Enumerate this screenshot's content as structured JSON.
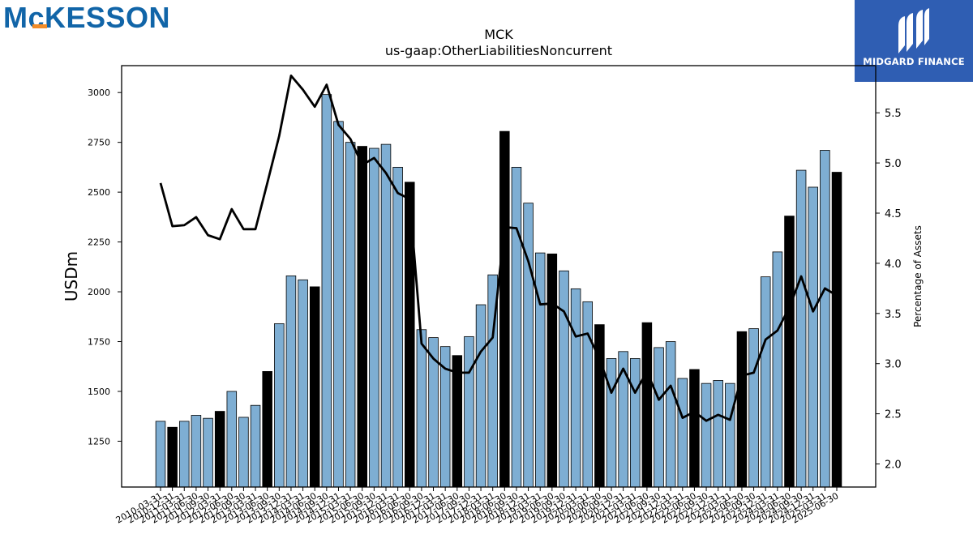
{
  "logos": {
    "left_text": "McKESSON",
    "right_text": "MIDGARD FINANCE"
  },
  "chart_data": {
    "type": "bar",
    "title": "MCK",
    "subtitle": "us-gaap:OtherLiabilitiesNoncurrent",
    "ylabel": "USDm",
    "y2label": "Percentage of Assets",
    "ylim": [
      1020,
      3135
    ],
    "y2lim": [
      1.77,
      5.97
    ],
    "yticks": [
      1250,
      1500,
      1750,
      2000,
      2250,
      2500,
      2750,
      3000
    ],
    "y2ticks": [
      "2.0",
      "2.5",
      "3.0",
      "3.5",
      "4.0",
      "4.5",
      "5.0",
      "5.5"
    ],
    "grid": false,
    "colors": {
      "bar": "#7eaed3",
      "bar_highlight": "#000000",
      "line": "#000000"
    },
    "categories": [
      "2010-03-31",
      "2010-12-31",
      "2011-03-31",
      "2011-06-30",
      "2011-09-30",
      "2012-03-31",
      "2012-06-30",
      "2012-09-30",
      "2013-03-31",
      "2013-06-30",
      "2013-09-30",
      "2013-12-31",
      "2014-03-31",
      "2014-06-30",
      "2014-09-30",
      "2014-12-31",
      "2015-03-31",
      "2015-06-30",
      "2015-09-30",
      "2015-12-31",
      "2016-03-31",
      "2016-06-30",
      "2016-09-30",
      "2016-12-31",
      "2017-03-31",
      "2017-06-30",
      "2017-09-30",
      "2017-12-31",
      "2018-03-31",
      "2018-06-30",
      "2018-09-30",
      "2018-12-31",
      "2019-03-31",
      "2019-06-30",
      "2019-09-30",
      "2019-12-31",
      "2020-03-31",
      "2020-06-30",
      "2020-09-30",
      "2020-12-31",
      "2021-03-31",
      "2021-06-30",
      "2021-09-30",
      "2021-12-31",
      "2022-03-31",
      "2022-06-30",
      "2022-09-30",
      "2022-12-31",
      "2023-03-31",
      "2023-06-30",
      "2023-09-30",
      "2023-12-31",
      "2024-03-31",
      "2024-06-30",
      "2024-09-30",
      "2024-12-31",
      "2025-03-31",
      "2025-06-30"
    ],
    "xtick_labels": [
      "2010-03-31",
      "2010-12-31",
      "2011-03-31",
      "2011-06-30",
      "2011-09-30",
      "2012-03-31",
      "2012-06-30",
      "2012-09-30",
      "2013-03-31",
      "2013-06-30",
      "2013-09-30",
      "2013-12-31",
      "2014-03-31",
      "2014-06-30",
      "2014-09-30",
      "2014-12-31",
      "2015-03-31",
      "2015-06-30",
      "2015-09-30",
      "2015-12-31",
      "2016-03-31",
      "2016-06-30",
      "2016-09-30",
      "2016-12-31",
      "2017-03-31",
      "2017-06-30",
      "2017-09-30",
      "2017-12-31",
      "2018-03-31",
      "2018-06-30",
      "2018-09-30",
      "2018-12-31",
      "2019-03-31",
      "2019-06-30",
      "2019-09-30",
      "2019-12-31",
      "2020-03-31",
      "2020-06-30",
      "2020-09-30",
      "2020-12-31",
      "2021-03-31",
      "2021-06-30",
      "2021-09-30",
      "2021-12-31",
      "2022-03-31",
      "2022-06-30",
      "2022-09-30",
      "2022-12-31",
      "2023-03-31",
      "2023-06-30",
      "2023-09-30",
      "2023-12-31",
      "2024-03-31",
      "2024-06-30",
      "2024-09-30",
      "2024-12-31",
      "2025-03-31",
      "2025-06-30"
    ],
    "values": [
      1350,
      1320,
      1350,
      1380,
      1365,
      1400,
      1500,
      1370,
      1430,
      1600,
      1840,
      2080,
      2060,
      2025,
      2990,
      2855,
      2750,
      2730,
      2720,
      2740,
      2625,
      2550,
      1810,
      1770,
      1725,
      1680,
      1775,
      1935,
      2085,
      2805,
      2625,
      2445,
      2195,
      2190,
      2105,
      2015,
      1950,
      1835,
      1665,
      1700,
      1665,
      1845,
      1720,
      1750,
      1565,
      1610,
      1540,
      1555,
      1540,
      1800,
      1815,
      2075,
      2200,
      2380,
      2610,
      2525,
      2710,
      2600
    ],
    "highlight": [
      false,
      true,
      false,
      false,
      false,
      true,
      false,
      false,
      false,
      true,
      false,
      false,
      false,
      true,
      false,
      false,
      false,
      true,
      false,
      false,
      false,
      true,
      false,
      false,
      false,
      true,
      false,
      false,
      false,
      true,
      false,
      false,
      false,
      true,
      false,
      false,
      false,
      true,
      false,
      false,
      false,
      true,
      false,
      false,
      false,
      true,
      false,
      false,
      false,
      true,
      false,
      false,
      false,
      true,
      false,
      false,
      false,
      true
    ],
    "pct_assets": [
      4.8,
      4.37,
      4.38,
      4.46,
      4.28,
      4.24,
      4.54,
      4.34,
      4.34,
      4.8,
      5.27,
      5.87,
      5.73,
      5.56,
      5.78,
      5.38,
      5.24,
      4.98,
      5.05,
      4.9,
      4.7,
      4.64,
      3.2,
      3.05,
      2.95,
      2.91,
      2.91,
      3.12,
      3.26,
      4.36,
      4.35,
      4.02,
      3.59,
      3.6,
      3.52,
      3.27,
      3.3,
      3.05,
      2.71,
      2.95,
      2.71,
      2.92,
      2.64,
      2.78,
      2.46,
      2.52,
      2.43,
      2.49,
      2.44,
      2.88,
      2.91,
      3.24,
      3.33,
      3.56,
      3.87,
      3.52,
      3.75,
      3.68
    ]
  }
}
